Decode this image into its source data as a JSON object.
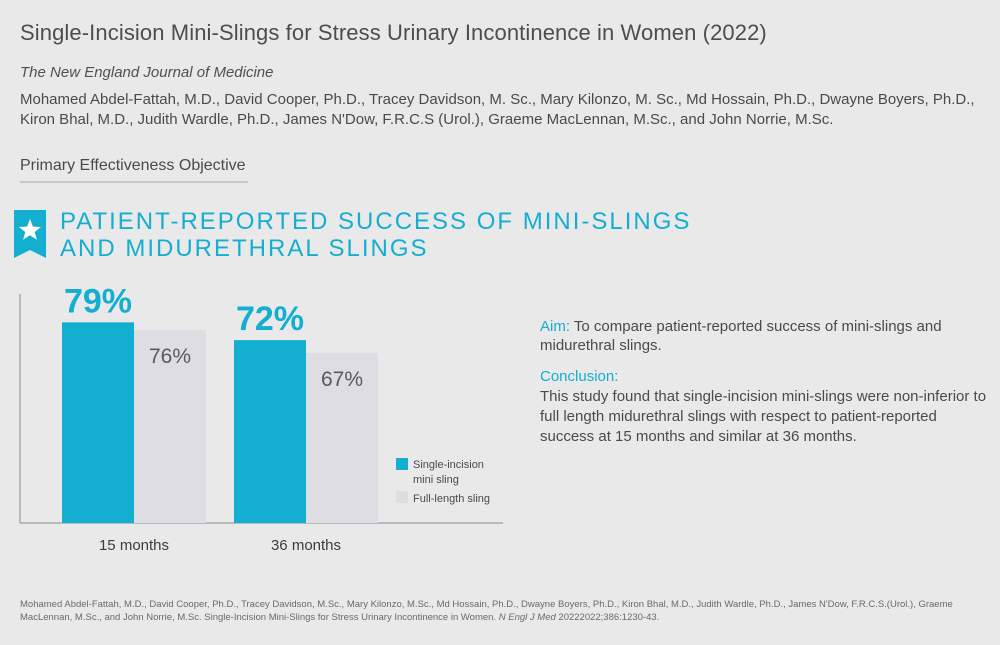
{
  "header": {
    "title": "Single-Incision Mini-Slings for Stress Urinary Incontinence in Women (2022)",
    "journal": "The New England Journal of Medicine",
    "authors": "Mohamed Abdel-Fattah, M.D., David Cooper, Ph.D., Tracey Davidson, M. Sc., Mary Kilonzo, M. Sc., Md Hossain, Ph.D., Dwayne Boyers, Ph.D., Kiron Bhal, M.D., Judith Wardle, Ph.D., James N'Dow, F.R.C.S (Urol.), Graeme MacLennan, M.Sc., and John Norrie, M.Sc."
  },
  "section": {
    "label": "Primary Effectiveness Objective"
  },
  "headline": {
    "line1": "Patient-Reported Success of Mini-Slings",
    "line2": "and Midurethral Slings"
  },
  "icons": {
    "badge": "star-icon"
  },
  "colors": {
    "accent": "#14aed1",
    "secondary": "#dddde2",
    "text": "#4a4a4a"
  },
  "chart_data": {
    "type": "bar",
    "categories": [
      "15 months",
      "36 months"
    ],
    "series": [
      {
        "name": "Single-incision mini sling",
        "values": [
          79,
          72
        ],
        "labels": [
          "79%",
          "72%"
        ],
        "color": "#14aed1"
      },
      {
        "name": "Full-length sling",
        "values": [
          76,
          67
        ],
        "labels": [
          "76%",
          "67%"
        ],
        "color": "#dddde2"
      }
    ],
    "legend": [
      "Single-incision",
      "mini sling",
      "Full-length sling"
    ],
    "ylim": [
      0,
      100
    ],
    "legend_position": "right"
  },
  "aim": {
    "label": "Aim:",
    "text": " To compare patient-reported success of mini-slings and midurethral slings."
  },
  "conclusion": {
    "label": "Conclusion:",
    "text": "This study found that single-incision mini-slings were non-inferior to full length midurethral slings with respect to patient-reported success at 15 months and similar at 36 months."
  },
  "footnote": {
    "text": "Mohamed Abdel-Fattah, M.D., David Cooper, Ph.D., Tracey Davidson, M.Sc., Mary Kilonzo, M.Sc., Md Hossain, Ph.D., Dwayne Boyers, Ph.D., Kiron Bhal, M.D., Judith Wardle, Ph.D., James N'Dow, F.R.C.S.(Urol.), Graeme MacLennan, M.Sc., and John Norrie, M.Sc. Single-Incision Mini-Slings for Stress Urinary Incontinence in Women. ",
    "journal_abbr": "N Engl J Med",
    "citation": " 20222022;386:1230-43."
  }
}
